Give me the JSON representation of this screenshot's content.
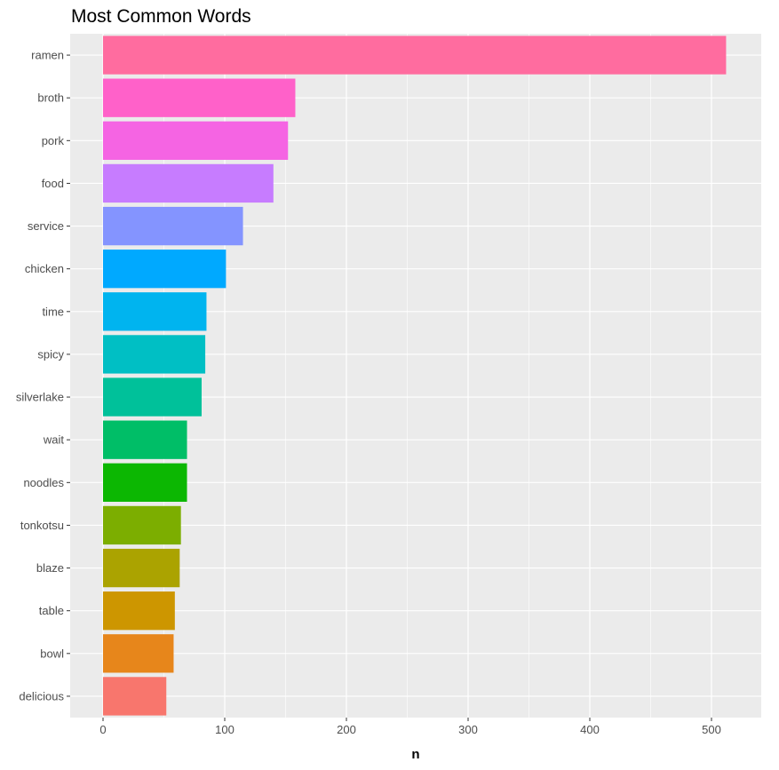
{
  "chart_data": {
    "type": "bar",
    "orientation": "horizontal",
    "title": "Most Common Words",
    "xlabel": "n",
    "ylabel": "",
    "xlim": [
      0,
      540
    ],
    "xticks": [
      0,
      100,
      200,
      300,
      400,
      500
    ],
    "grid": true,
    "legend": "none",
    "categories": [
      "ramen",
      "broth",
      "pork",
      "food",
      "service",
      "chicken",
      "time",
      "spicy",
      "silverlake",
      "wait",
      "noodles",
      "tonkotsu",
      "blaze",
      "table",
      "bowl",
      "delicious"
    ],
    "values": [
      512,
      158,
      152,
      140,
      115,
      101,
      85,
      84,
      81,
      69,
      69,
      64,
      63,
      59,
      58,
      52
    ],
    "colors": [
      "#FF6C9F",
      "#FF61C9",
      "#F564E3",
      "#C77CFF",
      "#8494FF",
      "#00A9FF",
      "#00B4EF",
      "#00BFC4",
      "#00C19A",
      "#00BE67",
      "#0CB702",
      "#7CAE00",
      "#ABA300",
      "#CD9600",
      "#E7861B",
      "#F8766D"
    ],
    "panel_background": "#EBEBEB",
    "grid_color": "#FFFFFF"
  }
}
